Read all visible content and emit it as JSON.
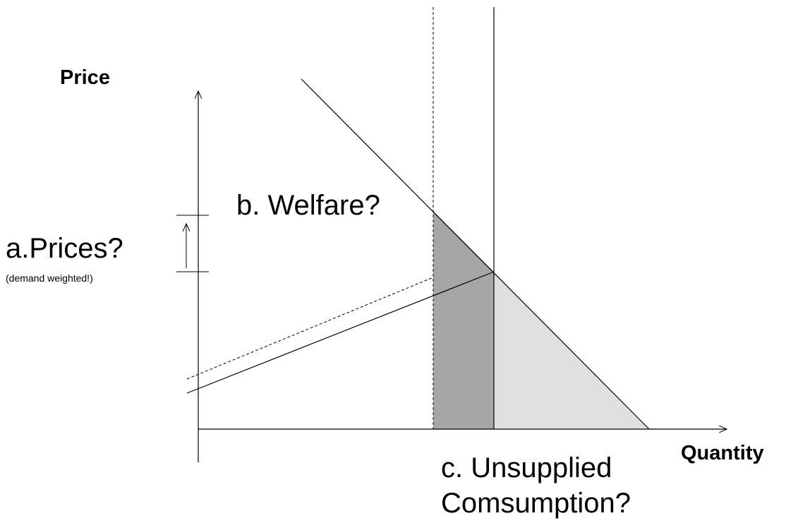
{
  "axes": {
    "y_label": "Price",
    "x_label": "Quantity"
  },
  "labels": {
    "prices": "a.Prices?",
    "prices_note": "(demand weighted!)",
    "welfare": "b. Welfare?",
    "unsupplied": [
      "c. Unsupplied",
      "Comsumption?"
    ]
  }
}
